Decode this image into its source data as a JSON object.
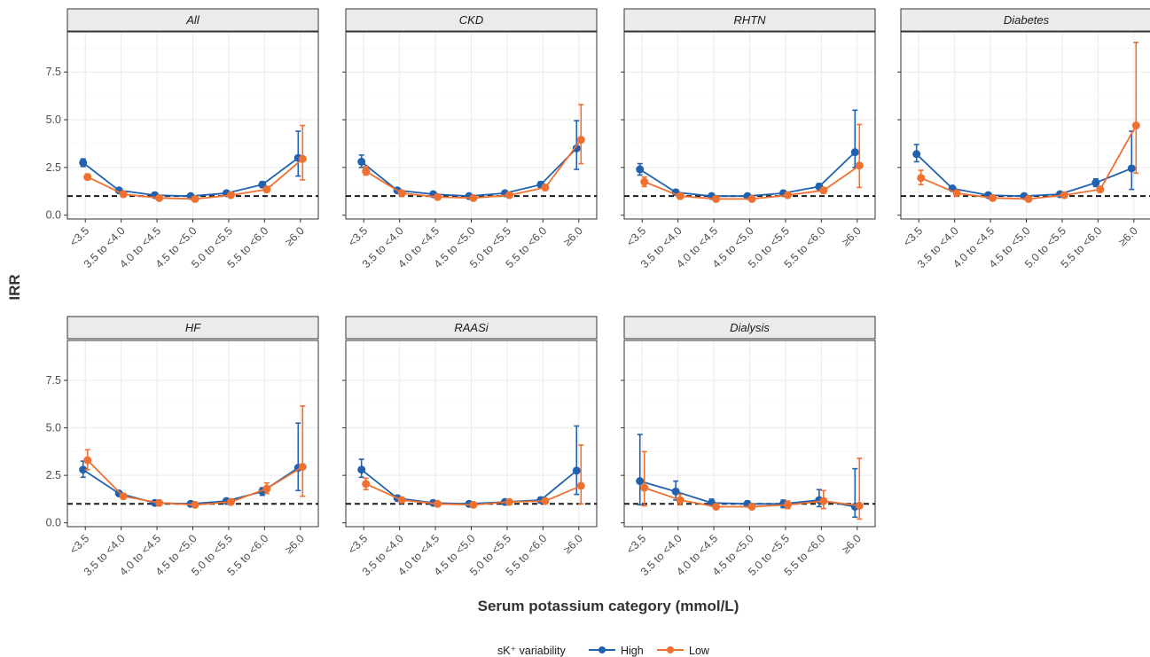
{
  "chart_data": {
    "type": "line",
    "facets": [
      "All",
      "CKD",
      "RHTN",
      "Diabetes",
      "HF",
      "RAASi",
      "Dialysis"
    ],
    "categories": [
      "<3.5",
      "3.5 to <4.0",
      "4.0 to <4.5",
      "4.5 to <5.0",
      "5.0 to <5.5",
      "5.5 to <6.0",
      "≥6.0"
    ],
    "xlabel": "Serum potassium category (mmol/L)",
    "ylabel": "IRR",
    "ylim": [
      -0.2,
      9.6
    ],
    "yticks": [
      0.0,
      2.5,
      5.0,
      7.5
    ],
    "ytick_labels": [
      "0.0",
      "2.5",
      "5.0",
      "7.5"
    ],
    "reference_line": 1.0,
    "legend": {
      "title": "sK⁺ variability",
      "entries": [
        "High",
        "Low"
      ],
      "position": "bottom"
    },
    "colors": {
      "High": "#2062b0",
      "Low": "#f07030"
    },
    "panels": [
      {
        "facet": "All",
        "series": [
          {
            "name": "High",
            "values": [
              2.75,
              1.3,
              1.05,
              1.0,
              1.15,
              1.6,
              3.0
            ],
            "lower": [
              2.55,
              1.2,
              0.95,
              0.9,
              1.05,
              1.45,
              2.05
            ],
            "upper": [
              2.95,
              1.4,
              1.15,
              1.1,
              1.25,
              1.75,
              4.4
            ]
          },
          {
            "name": "Low",
            "values": [
              2.0,
              1.1,
              0.9,
              0.85,
              1.05,
              1.35,
              2.95
            ],
            "lower": [
              1.85,
              1.0,
              0.82,
              0.78,
              0.95,
              1.2,
              1.85
            ],
            "upper": [
              2.15,
              1.2,
              0.98,
              0.92,
              1.15,
              1.5,
              4.7
            ]
          }
        ]
      },
      {
        "facet": "CKD",
        "series": [
          {
            "name": "High",
            "values": [
              2.8,
              1.3,
              1.1,
              1.0,
              1.15,
              1.6,
              3.5
            ],
            "lower": [
              2.5,
              1.2,
              1.0,
              0.9,
              1.05,
              1.45,
              2.4
            ],
            "upper": [
              3.15,
              1.4,
              1.2,
              1.1,
              1.25,
              1.75,
              4.95
            ]
          },
          {
            "name": "Low",
            "values": [
              2.3,
              1.15,
              0.95,
              0.9,
              1.05,
              1.45,
              3.95
            ],
            "lower": [
              2.1,
              1.05,
              0.87,
              0.82,
              0.95,
              1.3,
              2.7
            ],
            "upper": [
              2.55,
              1.25,
              1.03,
              0.98,
              1.15,
              1.6,
              5.8
            ]
          }
        ]
      },
      {
        "facet": "RHTN",
        "series": [
          {
            "name": "High",
            "values": [
              2.4,
              1.2,
              1.0,
              1.0,
              1.15,
              1.5,
              3.3
            ],
            "lower": [
              2.1,
              1.1,
              0.9,
              0.9,
              1.05,
              1.35,
              2.5
            ],
            "upper": [
              2.7,
              1.3,
              1.1,
              1.1,
              1.25,
              1.65,
              5.5
            ]
          },
          {
            "name": "Low",
            "values": [
              1.75,
              1.0,
              0.85,
              0.85,
              1.05,
              1.3,
              2.6
            ],
            "lower": [
              1.5,
              0.9,
              0.78,
              0.78,
              0.95,
              1.15,
              1.45
            ],
            "upper": [
              2.0,
              1.1,
              0.92,
              0.92,
              1.15,
              1.45,
              4.75
            ]
          }
        ]
      },
      {
        "facet": "Diabetes",
        "series": [
          {
            "name": "High",
            "values": [
              3.2,
              1.4,
              1.05,
              1.0,
              1.1,
              1.7,
              2.45
            ],
            "lower": [
              2.8,
              1.3,
              0.95,
              0.9,
              1.0,
              1.5,
              1.35
            ],
            "upper": [
              3.7,
              1.5,
              1.15,
              1.1,
              1.2,
              1.9,
              4.4
            ]
          },
          {
            "name": "Low",
            "values": [
              1.95,
              1.15,
              0.9,
              0.85,
              1.05,
              1.35,
              4.7
            ],
            "lower": [
              1.6,
              1.05,
              0.82,
              0.78,
              0.95,
              1.2,
              2.2
            ],
            "upper": [
              2.35,
              1.25,
              0.98,
              0.92,
              1.15,
              1.5,
              9.05
            ]
          }
        ]
      },
      {
        "facet": "HF",
        "series": [
          {
            "name": "High",
            "values": [
              2.8,
              1.55,
              1.05,
              1.0,
              1.15,
              1.65,
              2.9
            ],
            "lower": [
              2.4,
              1.45,
              0.95,
              0.9,
              1.05,
              1.45,
              1.7
            ],
            "upper": [
              3.25,
              1.65,
              1.15,
              1.1,
              1.25,
              1.85,
              5.25
            ]
          },
          {
            "name": "Low",
            "values": [
              3.3,
              1.4,
              1.05,
              0.95,
              1.1,
              1.8,
              2.95
            ],
            "lower": [
              2.8,
              1.3,
              0.95,
              0.88,
              1.0,
              1.55,
              1.4
            ],
            "upper": [
              3.85,
              1.5,
              1.15,
              1.02,
              1.2,
              2.1,
              6.15
            ]
          }
        ]
      },
      {
        "facet": "RAASi",
        "series": [
          {
            "name": "High",
            "values": [
              2.8,
              1.3,
              1.05,
              1.0,
              1.1,
              1.2,
              2.75
            ],
            "lower": [
              2.4,
              1.2,
              0.95,
              0.9,
              1.0,
              1.05,
              1.5
            ],
            "upper": [
              3.35,
              1.4,
              1.15,
              1.1,
              1.2,
              1.35,
              5.1
            ]
          },
          {
            "name": "Low",
            "values": [
              2.05,
              1.2,
              1.0,
              0.95,
              1.1,
              1.15,
              1.95
            ],
            "lower": [
              1.75,
              1.1,
              0.92,
              0.88,
              1.0,
              1.05,
              1.0
            ],
            "upper": [
              2.35,
              1.3,
              1.08,
              1.02,
              1.2,
              1.25,
              4.1
            ]
          }
        ]
      },
      {
        "facet": "Dialysis",
        "series": [
          {
            "name": "High",
            "values": [
              2.2,
              1.65,
              1.05,
              1.0,
              1.0,
              1.2,
              0.85
            ],
            "lower": [
              0.95,
              1.2,
              0.9,
              0.85,
              0.8,
              0.85,
              0.3
            ],
            "upper": [
              4.65,
              2.2,
              1.25,
              1.15,
              1.2,
              1.75,
              2.85
            ]
          },
          {
            "name": "Low",
            "values": [
              1.85,
              1.2,
              0.85,
              0.85,
              0.95,
              1.15,
              0.9
            ],
            "lower": [
              0.9,
              0.95,
              0.72,
              0.72,
              0.75,
              0.75,
              0.2
            ],
            "upper": [
              3.75,
              1.5,
              0.98,
              0.98,
              1.15,
              1.7,
              3.4
            ]
          }
        ]
      }
    ]
  }
}
